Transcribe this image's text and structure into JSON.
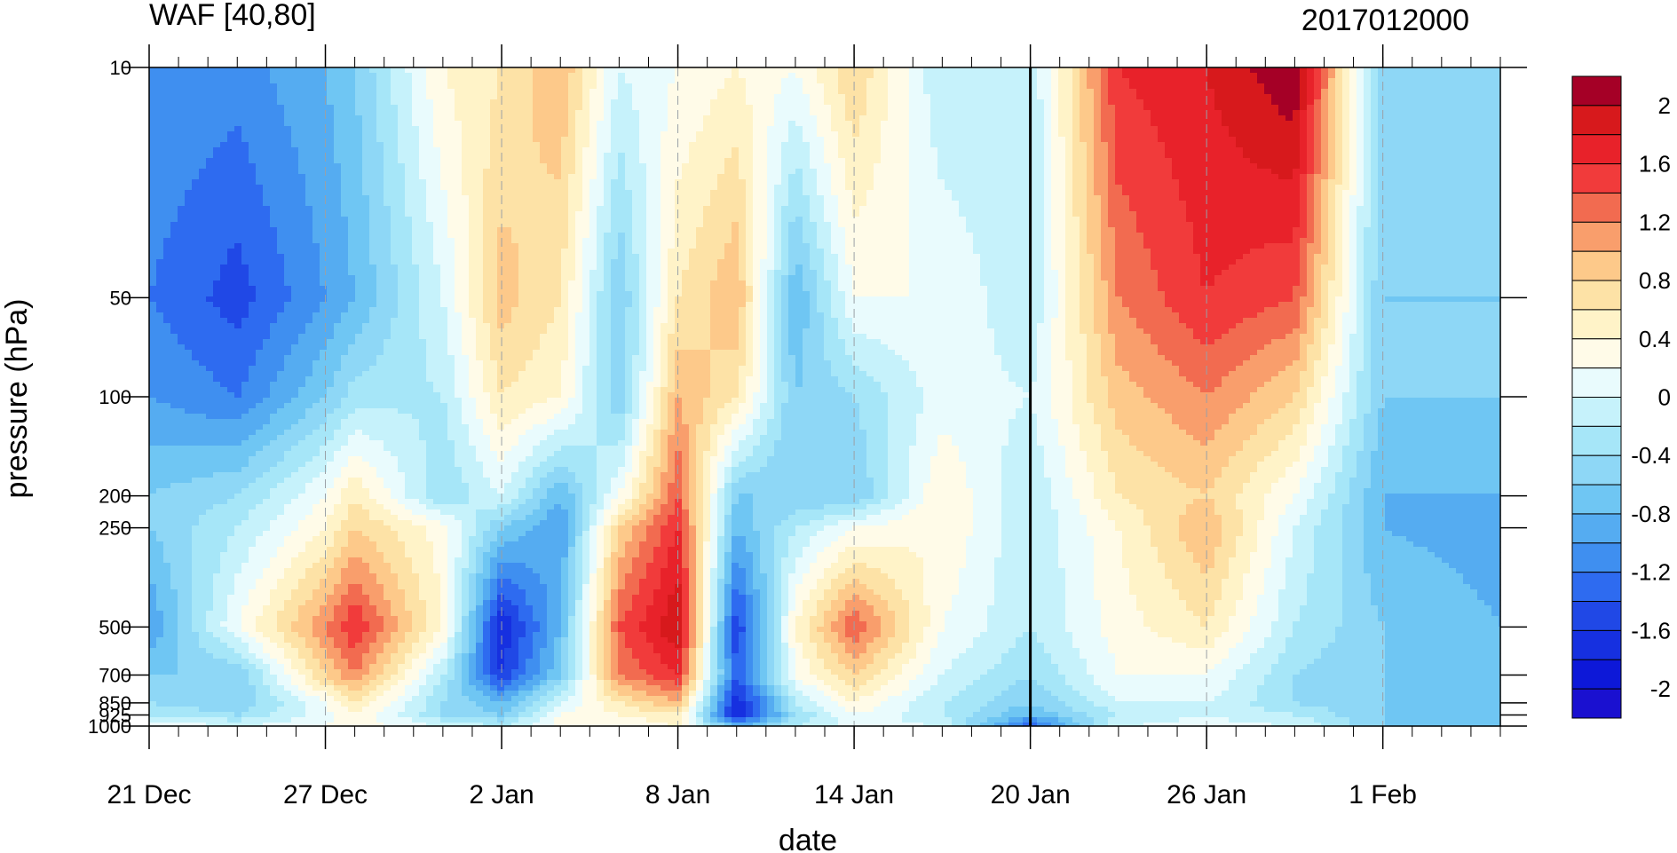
{
  "chart_data": {
    "type": "heatmap",
    "title": "WAF [40,80]",
    "timestamp": "2017012000",
    "xlabel": "date",
    "ylabel": "pressure (hPa)",
    "x_ticks": [
      "21 Dec",
      "27 Dec",
      "2 Jan",
      "8 Jan",
      "14 Jan",
      "20 Jan",
      "26 Jan",
      "1 Feb"
    ],
    "x_dates": [
      "2016-12-21",
      "2016-12-27",
      "2017-01-02",
      "2017-01-08",
      "2017-01-14",
      "2017-01-20",
      "2017-01-26",
      "2017-02-01"
    ],
    "x_range": [
      "2016-12-21",
      "2017-02-05"
    ],
    "y_ticks": [
      "10",
      "50",
      "100",
      "200",
      "250",
      "500",
      "700",
      "850",
      "925",
      "1000"
    ],
    "y_values": [
      10,
      50,
      100,
      200,
      250,
      500,
      700,
      850,
      925,
      1000
    ],
    "y_scale": "log",
    "y_range": [
      1000,
      10
    ],
    "forecast_start": "20 Jan",
    "colorbar": {
      "labels": [
        "2",
        "1.6",
        "1.2",
        "0.8",
        "0.4",
        "0",
        "-0.4",
        "-0.8",
        "-1.2",
        "-1.6",
        "-2"
      ],
      "levels": [
        2.2,
        2.0,
        1.8,
        1.6,
        1.4,
        1.2,
        1.0,
        0.8,
        0.6,
        0.4,
        0.2,
        0.0,
        -0.2,
        -0.4,
        -0.6,
        -0.8,
        -1.0,
        -1.2,
        -1.4,
        -1.6,
        -1.8,
        -2.0,
        -2.2
      ],
      "colors": [
        "#a50026",
        "#d7191c",
        "#e8222a",
        "#f13b3b",
        "#f26b50",
        "#f99e6c",
        "#fdc98a",
        "#fde2a6",
        "#fff3c8",
        "#fffbe8",
        "#e9fbfd",
        "#c6f2fb",
        "#a6e6f8",
        "#8ed7f6",
        "#6fc6f3",
        "#55acf1",
        "#3f8ff0",
        "#2e6bf0",
        "#2048e6",
        "#1630e0",
        "#0d18d8",
        "#1a10d0"
      ]
    },
    "pressure_levels": [
      10,
      50,
      100,
      200,
      250,
      500,
      700,
      850,
      925,
      1000
    ],
    "columns": [
      {
        "date": "2016-12-21",
        "values": [
          -1.0,
          -1.2,
          -1.0,
          -0.6,
          -0.6,
          -1.0,
          -0.6,
          -0.4,
          -0.2,
          0.2
        ]
      },
      {
        "date": "2016-12-24",
        "values": [
          -1.1,
          -1.5,
          -1.2,
          -0.4,
          -0.2,
          0.2,
          -0.6,
          -0.6,
          -0.4,
          0.0
        ]
      },
      {
        "date": "2016-12-27",
        "values": [
          -0.8,
          -1.0,
          -0.6,
          0.2,
          0.4,
          1.2,
          0.8,
          0.2,
          0.1,
          0.2
        ]
      },
      {
        "date": "2016-12-28",
        "values": [
          -0.6,
          -0.8,
          -0.3,
          0.6,
          0.8,
          1.6,
          1.2,
          0.6,
          0.4,
          0.3
        ]
      },
      {
        "date": "2016-12-31",
        "values": [
          0.4,
          0.0,
          -0.2,
          -0.4,
          0.3,
          0.4,
          -0.2,
          -0.4,
          -0.4,
          0.0
        ]
      },
      {
        "date": "2017-01-02",
        "values": [
          0.6,
          0.9,
          0.6,
          0.0,
          -0.6,
          -1.8,
          -1.6,
          -0.8,
          -0.6,
          -0.2
        ]
      },
      {
        "date": "2017-01-04",
        "values": [
          1.0,
          0.6,
          0.4,
          -0.8,
          -1.0,
          -0.8,
          -0.6,
          0.0,
          0.2,
          0.3
        ]
      },
      {
        "date": "2017-01-06",
        "values": [
          0.0,
          -0.6,
          -0.6,
          0.2,
          0.8,
          1.4,
          1.2,
          0.6,
          0.4,
          0.2
        ]
      },
      {
        "date": "2017-01-08",
        "values": [
          0.2,
          0.6,
          1.0,
          1.4,
          1.6,
          2.0,
          1.6,
          1.0,
          0.6,
          0.4
        ]
      },
      {
        "date": "2017-01-10",
        "values": [
          0.4,
          1.0,
          0.6,
          -0.6,
          -0.8,
          -1.6,
          -1.4,
          -1.8,
          -1.8,
          -0.8
        ]
      },
      {
        "date": "2017-01-12",
        "values": [
          0.2,
          -0.8,
          -0.6,
          -0.6,
          -0.2,
          0.4,
          0.2,
          -0.2,
          -0.4,
          -0.2
        ]
      },
      {
        "date": "2017-01-14",
        "values": [
          0.8,
          0.2,
          -0.4,
          -0.6,
          0.2,
          1.4,
          0.8,
          0.4,
          0.2,
          0.1
        ]
      },
      {
        "date": "2017-01-17",
        "values": [
          -0.2,
          0.2,
          0.1,
          0.4,
          0.4,
          0.2,
          0.0,
          -0.2,
          -0.2,
          0.0
        ]
      },
      {
        "date": "2017-01-20",
        "values": [
          -0.2,
          -0.2,
          0.0,
          -0.2,
          -0.2,
          -0.2,
          -0.4,
          -0.6,
          -0.8,
          -1.4
        ]
      },
      {
        "date": "2017-01-23",
        "values": [
          1.6,
          1.2,
          0.9,
          0.6,
          0.4,
          0.3,
          0.2,
          0.0,
          -0.2,
          0.0
        ]
      },
      {
        "date": "2017-01-26",
        "values": [
          1.8,
          1.6,
          1.2,
          0.8,
          1.0,
          0.6,
          0.2,
          0.0,
          0.0,
          0.1
        ]
      },
      {
        "date": "2017-01-29",
        "values": [
          2.2,
          1.4,
          0.8,
          0.2,
          0.0,
          -0.2,
          -0.4,
          -0.4,
          -0.2,
          0.0
        ]
      },
      {
        "date": "2017-02-01",
        "values": [
          -0.6,
          -0.6,
          -0.6,
          -0.8,
          -0.8,
          -0.6,
          -0.6,
          -0.6,
          -0.6,
          -0.6
        ]
      },
      {
        "date": "2017-02-05",
        "values": [
          -0.6,
          -0.6,
          -0.6,
          -0.8,
          -0.9,
          -0.8,
          -0.8,
          -0.8,
          -0.8,
          -0.8
        ]
      }
    ]
  }
}
